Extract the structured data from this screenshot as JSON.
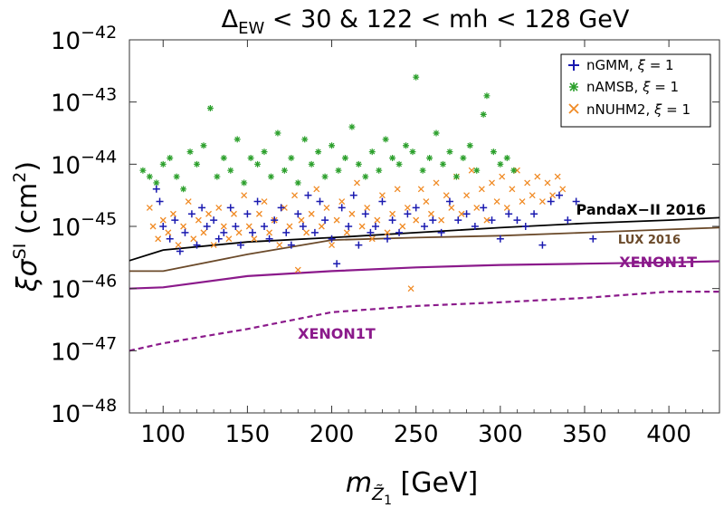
{
  "chart_data": {
    "type": "scatter",
    "title": {
      "main": "Δ",
      "sub": "EW",
      "rest": " < 30 & 122 < mh < 128 GeV"
    },
    "xlabel": {
      "symbol": "m",
      "sub": "Z̃",
      "sub2": "1",
      "unit": " [GeV]"
    },
    "ylabel": {
      "prefix": "ξσ",
      "sup": "SI",
      "unit": " (cm",
      "unit_sup": "2",
      "unit_end": ")"
    },
    "xlim": [
      80,
      430
    ],
    "ylim_log10": [
      -48,
      -42
    ],
    "xticks": [
      100,
      150,
      200,
      250,
      300,
      350,
      400
    ],
    "yticks": [
      {
        "base": "10",
        "exp": "−42",
        "value": -42
      },
      {
        "base": "10",
        "exp": "−43",
        "value": -43
      },
      {
        "base": "10",
        "exp": "−44",
        "value": -44
      },
      {
        "base": "10",
        "exp": "−45",
        "value": -45
      },
      {
        "base": "10",
        "exp": "−46",
        "value": -46
      },
      {
        "base": "10",
        "exp": "−47",
        "value": -47
      },
      {
        "base": "10",
        "exp": "−48",
        "value": -48
      }
    ],
    "legend": {
      "position": "top-right",
      "entries": [
        {
          "marker": "+",
          "name": "nGMM",
          "xi": "ξ",
          "eq": " = 1"
        },
        {
          "marker": "*",
          "name": "nAMSB",
          "xi": "ξ",
          "eq": " = 1"
        },
        {
          "marker": "x",
          "name": "nNUHM2",
          "xi": "ξ",
          "eq": " = 1"
        }
      ]
    },
    "series": [
      {
        "name": "nGMM",
        "marker": "+",
        "color": "#1a1ab0",
        "points": [
          [
            96,
            -44.4
          ],
          [
            98,
            -44.6
          ],
          [
            100,
            -45.0
          ],
          [
            104,
            -45.2
          ],
          [
            107,
            -44.9
          ],
          [
            110,
            -45.4
          ],
          [
            113,
            -45.1
          ],
          [
            117,
            -44.8
          ],
          [
            120,
            -45.3
          ],
          [
            123,
            -44.7
          ],
          [
            126,
            -45.0
          ],
          [
            130,
            -44.9
          ],
          [
            133,
            -45.2
          ],
          [
            136,
            -45.1
          ],
          [
            140,
            -44.7
          ],
          [
            143,
            -45.0
          ],
          [
            146,
            -45.3
          ],
          [
            150,
            -44.8
          ],
          [
            153,
            -45.1
          ],
          [
            156,
            -44.6
          ],
          [
            160,
            -45.0
          ],
          [
            163,
            -45.2
          ],
          [
            166,
            -44.9
          ],
          [
            170,
            -44.7
          ],
          [
            173,
            -45.1
          ],
          [
            176,
            -45.3
          ],
          [
            180,
            -44.8
          ],
          [
            183,
            -45.0
          ],
          [
            186,
            -44.5
          ],
          [
            190,
            -45.1
          ],
          [
            193,
            -44.6
          ],
          [
            196,
            -44.9
          ],
          [
            200,
            -45.2
          ],
          [
            203,
            -45.6
          ],
          [
            206,
            -44.7
          ],
          [
            210,
            -45.0
          ],
          [
            213,
            -44.5
          ],
          [
            216,
            -45.3
          ],
          [
            220,
            -44.8
          ],
          [
            223,
            -45.1
          ],
          [
            226,
            -45.0
          ],
          [
            230,
            -44.6
          ],
          [
            233,
            -45.2
          ],
          [
            236,
            -44.9
          ],
          [
            240,
            -45.1
          ],
          [
            245,
            -44.8
          ],
          [
            250,
            -44.7
          ],
          [
            255,
            -45.0
          ],
          [
            260,
            -44.9
          ],
          [
            265,
            -45.1
          ],
          [
            270,
            -44.6
          ],
          [
            275,
            -44.9
          ],
          [
            280,
            -44.8
          ],
          [
            285,
            -45.0
          ],
          [
            290,
            -44.7
          ],
          [
            295,
            -44.9
          ],
          [
            300,
            -45.2
          ],
          [
            305,
            -44.8
          ],
          [
            310,
            -44.9
          ],
          [
            315,
            -45.0
          ],
          [
            320,
            -44.8
          ],
          [
            325,
            -45.3
          ],
          [
            330,
            -44.6
          ],
          [
            335,
            -44.5
          ],
          [
            340,
            -44.9
          ],
          [
            345,
            -44.6
          ],
          [
            355,
            -45.2
          ]
        ]
      },
      {
        "name": "nAMSB",
        "marker": "*",
        "color": "#2ca02c",
        "points": [
          [
            88,
            -44.1
          ],
          [
            92,
            -44.2
          ],
          [
            96,
            -44.3
          ],
          [
            100,
            -44.0
          ],
          [
            104,
            -43.9
          ],
          [
            108,
            -44.2
          ],
          [
            112,
            -44.4
          ],
          [
            116,
            -43.8
          ],
          [
            120,
            -44.0
          ],
          [
            124,
            -43.7
          ],
          [
            128,
            -43.1
          ],
          [
            132,
            -44.2
          ],
          [
            136,
            -43.9
          ],
          [
            140,
            -44.1
          ],
          [
            144,
            -43.6
          ],
          [
            148,
            -44.3
          ],
          [
            152,
            -43.9
          ],
          [
            156,
            -44.0
          ],
          [
            160,
            -43.8
          ],
          [
            164,
            -44.2
          ],
          [
            168,
            -43.5
          ],
          [
            172,
            -44.1
          ],
          [
            176,
            -43.9
          ],
          [
            180,
            -44.3
          ],
          [
            184,
            -43.6
          ],
          [
            188,
            -44.0
          ],
          [
            192,
            -43.8
          ],
          [
            196,
            -44.2
          ],
          [
            200,
            -43.7
          ],
          [
            204,
            -44.1
          ],
          [
            208,
            -43.9
          ],
          [
            212,
            -43.4
          ],
          [
            216,
            -44.0
          ],
          [
            220,
            -44.2
          ],
          [
            224,
            -43.8
          ],
          [
            228,
            -44.1
          ],
          [
            232,
            -43.6
          ],
          [
            236,
            -43.9
          ],
          [
            240,
            -44.0
          ],
          [
            244,
            -43.7
          ],
          [
            248,
            -43.8
          ],
          [
            250,
            -42.6
          ],
          [
            254,
            -44.1
          ],
          [
            258,
            -43.9
          ],
          [
            262,
            -43.5
          ],
          [
            266,
            -44.0
          ],
          [
            270,
            -43.8
          ],
          [
            274,
            -44.2
          ],
          [
            278,
            -43.9
          ],
          [
            282,
            -43.7
          ],
          [
            286,
            -44.1
          ],
          [
            290,
            -43.2
          ],
          [
            292,
            -42.9
          ],
          [
            296,
            -43.8
          ],
          [
            300,
            -44.0
          ],
          [
            304,
            -43.9
          ],
          [
            308,
            -44.1
          ]
        ]
      },
      {
        "name": "nNUHM2",
        "marker": "x",
        "color": "#f08a24",
        "points": [
          [
            92,
            -44.7
          ],
          [
            94,
            -45.0
          ],
          [
            97,
            -45.2
          ],
          [
            100,
            -44.9
          ],
          [
            103,
            -45.1
          ],
          [
            106,
            -44.8
          ],
          [
            109,
            -45.3
          ],
          [
            112,
            -45.0
          ],
          [
            115,
            -44.6
          ],
          [
            118,
            -45.2
          ],
          [
            121,
            -44.9
          ],
          [
            124,
            -45.1
          ],
          [
            127,
            -44.8
          ],
          [
            130,
            -45.3
          ],
          [
            133,
            -44.7
          ],
          [
            136,
            -45.0
          ],
          [
            139,
            -45.2
          ],
          [
            142,
            -44.8
          ],
          [
            145,
            -45.1
          ],
          [
            148,
            -44.5
          ],
          [
            151,
            -45.0
          ],
          [
            154,
            -45.2
          ],
          [
            157,
            -44.8
          ],
          [
            160,
            -44.6
          ],
          [
            163,
            -45.1
          ],
          [
            166,
            -44.9
          ],
          [
            169,
            -45.3
          ],
          [
            172,
            -44.7
          ],
          [
            175,
            -45.0
          ],
          [
            178,
            -44.5
          ],
          [
            180,
            -45.7
          ],
          [
            182,
            -44.9
          ],
          [
            185,
            -45.1
          ],
          [
            188,
            -44.8
          ],
          [
            191,
            -44.4
          ],
          [
            194,
            -45.0
          ],
          [
            197,
            -44.7
          ],
          [
            200,
            -45.3
          ],
          [
            203,
            -44.9
          ],
          [
            206,
            -44.6
          ],
          [
            209,
            -45.1
          ],
          [
            212,
            -44.8
          ],
          [
            215,
            -44.3
          ],
          [
            218,
            -45.0
          ],
          [
            221,
            -44.7
          ],
          [
            224,
            -45.2
          ],
          [
            227,
            -44.9
          ],
          [
            230,
            -44.5
          ],
          [
            233,
            -45.1
          ],
          [
            236,
            -44.8
          ],
          [
            239,
            -44.4
          ],
          [
            242,
            -45.0
          ],
          [
            245,
            -44.7
          ],
          [
            247,
            -46.0
          ],
          [
            250,
            -44.9
          ],
          [
            253,
            -44.4
          ],
          [
            256,
            -44.6
          ],
          [
            259,
            -44.8
          ],
          [
            262,
            -44.3
          ],
          [
            265,
            -44.9
          ],
          [
            268,
            -44.5
          ],
          [
            271,
            -44.7
          ],
          [
            274,
            -44.2
          ],
          [
            277,
            -44.8
          ],
          [
            280,
            -44.5
          ],
          [
            283,
            -44.1
          ],
          [
            286,
            -44.7
          ],
          [
            289,
            -44.4
          ],
          [
            292,
            -44.9
          ],
          [
            295,
            -44.3
          ],
          [
            298,
            -44.6
          ],
          [
            301,
            -44.2
          ],
          [
            304,
            -44.7
          ],
          [
            307,
            -44.4
          ],
          [
            310,
            -44.1
          ],
          [
            313,
            -44.6
          ],
          [
            316,
            -44.3
          ],
          [
            319,
            -44.5
          ],
          [
            322,
            -44.2
          ],
          [
            325,
            -44.6
          ],
          [
            328,
            -44.3
          ],
          [
            331,
            -44.5
          ],
          [
            334,
            -44.2
          ],
          [
            337,
            -44.4
          ]
        ]
      }
    ],
    "lines": [
      {
        "label": "PandaX-II 2016",
        "color": "#000000",
        "style": "solid",
        "x": [
          80,
          100,
          150,
          200,
          250,
          300,
          350,
          400,
          430
        ],
        "y": [
          -45.55,
          -45.38,
          -45.25,
          -45.18,
          -45.1,
          -45.02,
          -44.95,
          -44.9,
          -44.86
        ]
      },
      {
        "label": "LUX 2016",
        "color": "#6b4a2a",
        "style": "solid",
        "x": [
          80,
          100,
          150,
          200,
          250,
          300,
          350,
          400,
          430
        ],
        "y": [
          -45.72,
          -45.72,
          -45.45,
          -45.22,
          -45.18,
          -45.15,
          -45.1,
          -45.05,
          -45.02
        ]
      },
      {
        "label": "XENON1T",
        "color": "#8b1a8b",
        "style": "solid",
        "x": [
          80,
          100,
          150,
          200,
          250,
          300,
          350,
          400,
          430
        ],
        "y": [
          -46.0,
          -45.98,
          -45.8,
          -45.72,
          -45.66,
          -45.62,
          -45.6,
          -45.58,
          -45.56
        ]
      },
      {
        "label": "XENON1T",
        "color": "#8b1a8b",
        "style": "dashed",
        "x": [
          80,
          100,
          150,
          200,
          250,
          300,
          350,
          400,
          430
        ],
        "y": [
          -47.0,
          -46.88,
          -46.65,
          -46.38,
          -46.28,
          -46.22,
          -46.15,
          -46.05,
          -46.05
        ]
      }
    ],
    "annotations": [
      {
        "text": "PandaX−II 2016",
        "color": "#000000"
      },
      {
        "text": "LUX 2016",
        "color": "#6b4a2a"
      },
      {
        "text": "XENON1T",
        "color": "#8b1a8b"
      },
      {
        "text": "XENON1T",
        "color": "#8b1a8b"
      }
    ]
  }
}
